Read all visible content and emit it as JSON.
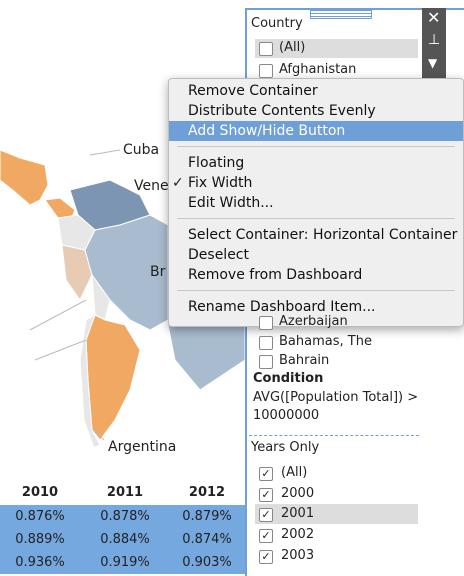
{
  "map": {
    "labels": [
      "Cuba",
      "Vene",
      "Br",
      "Argentina"
    ]
  },
  "table": {
    "columns": [
      "2010",
      "2011",
      "2012"
    ],
    "rows": [
      [
        "0.876%",
        "0.878%",
        "0.879%"
      ],
      [
        "0.889%",
        "0.884%",
        "0.874%"
      ],
      [
        "0.936%",
        "0.919%",
        "0.903%"
      ]
    ]
  },
  "country_filter": {
    "title": "Country",
    "items": [
      "(All)",
      "Afghanistan",
      "Azerbaijan",
      "Bahamas, The",
      "Bahrain"
    ]
  },
  "condition": {
    "title": "Condition",
    "lines": [
      "AVG([Population Total]) >",
      "10000000"
    ]
  },
  "years_filter": {
    "title": "Years Only",
    "items": [
      "(All)",
      "2000",
      "2001",
      "2002",
      "2003"
    ]
  },
  "context_menu": {
    "groups": [
      [
        "Remove Container",
        "Distribute Contents Evenly",
        "Add Show/Hide Button"
      ],
      [
        "Floating",
        "Fix Width",
        "Edit Width..."
      ],
      [
        "Select Container: Horizontal Container",
        "Deselect",
        "Remove from Dashboard"
      ],
      [
        "Rename Dashboard Item..."
      ]
    ]
  }
}
